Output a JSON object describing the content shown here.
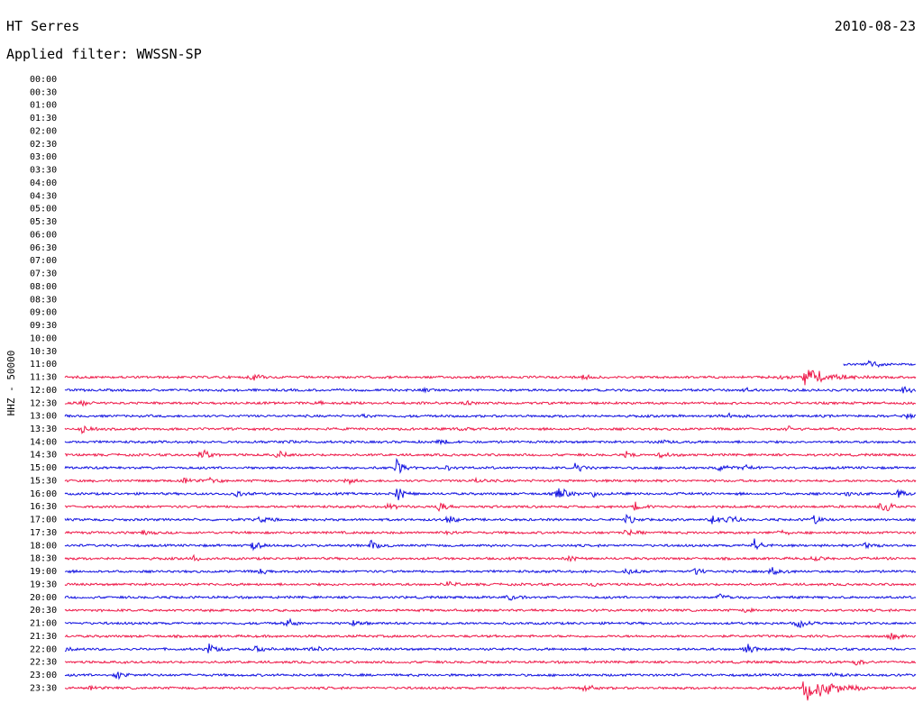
{
  "header": {
    "station": "HT Serres",
    "date": "2010-08-23",
    "filter": "Applied filter: WWSSN-SP"
  },
  "chart_data": {
    "type": "line",
    "title": "HT Serres",
    "date": "2010-08-23",
    "ylabel": "HHZ - 50000",
    "row_labels": [
      "00:00",
      "00:30",
      "01:00",
      "01:30",
      "02:00",
      "02:30",
      "03:00",
      "03:30",
      "04:00",
      "04:30",
      "05:00",
      "05:30",
      "06:00",
      "06:30",
      "07:00",
      "07:30",
      "08:00",
      "08:30",
      "09:00",
      "09:30",
      "10:00",
      "10:30",
      "11:00",
      "11:30",
      "12:00",
      "12:30",
      "13:00",
      "13:30",
      "14:00",
      "14:30",
      "15:00",
      "15:30",
      "16:00",
      "16:30",
      "17:00",
      "17:30",
      "18:00",
      "18:30",
      "19:00",
      "19:30",
      "20:00",
      "20:30",
      "21:00",
      "21:30",
      "22:00",
      "22:30",
      "23:00",
      "23:30"
    ],
    "x_range_minutes": [
      0,
      30
    ],
    "colors": {
      "odd": "#1010e0",
      "even": "#ee1848"
    },
    "traces": [
      {
        "row": "11:00",
        "start": 0.915,
        "end": 1.0,
        "bursts": [
          [
            0.945,
            8
          ]
        ]
      },
      {
        "row": "11:30",
        "start": 0.0,
        "end": 1.0,
        "bursts": [
          [
            0.22,
            5
          ],
          [
            0.61,
            3
          ],
          [
            0.84,
            4
          ],
          [
            0.87,
            11
          ]
        ]
      },
      {
        "row": "12:00",
        "start": 0.0,
        "end": 1.0,
        "bursts": [
          [
            0.42,
            2
          ],
          [
            0.8,
            3
          ],
          [
            0.985,
            5
          ]
        ]
      },
      {
        "row": "12:30",
        "start": 0.0,
        "end": 1.0,
        "bursts": [
          [
            0.02,
            3
          ],
          [
            0.3,
            2
          ],
          [
            0.47,
            2
          ]
        ]
      },
      {
        "row": "13:00",
        "start": 0.0,
        "end": 1.0,
        "bursts": [
          [
            0.35,
            2
          ],
          [
            0.78,
            3
          ],
          [
            0.99,
            4
          ]
        ]
      },
      {
        "row": "13:30",
        "start": 0.0,
        "end": 1.0,
        "bursts": [
          [
            0.02,
            6
          ],
          [
            0.46,
            3
          ],
          [
            0.85,
            3
          ],
          [
            0.9,
            2
          ]
        ]
      },
      {
        "row": "14:00",
        "start": 0.0,
        "end": 1.0,
        "bursts": [
          [
            0.26,
            2
          ],
          [
            0.44,
            3
          ],
          [
            0.7,
            2
          ]
        ]
      },
      {
        "row": "14:30",
        "start": 0.0,
        "end": 1.0,
        "bursts": [
          [
            0.16,
            8
          ],
          [
            0.25,
            6
          ],
          [
            0.66,
            4
          ],
          [
            0.7,
            3
          ]
        ]
      },
      {
        "row": "15:00",
        "start": 0.0,
        "end": 1.0,
        "bursts": [
          [
            0.39,
            9
          ],
          [
            0.45,
            3
          ],
          [
            0.6,
            6
          ],
          [
            0.77,
            5
          ],
          [
            0.8,
            4
          ]
        ]
      },
      {
        "row": "15:30",
        "start": 0.0,
        "end": 1.0,
        "bursts": [
          [
            0.14,
            3
          ],
          [
            0.17,
            3
          ],
          [
            0.33,
            4
          ],
          [
            0.48,
            3
          ]
        ]
      },
      {
        "row": "16:00",
        "start": 0.0,
        "end": 1.0,
        "bursts": [
          [
            0.2,
            4
          ],
          [
            0.39,
            10
          ],
          [
            0.58,
            10
          ],
          [
            0.62,
            4
          ],
          [
            0.92,
            4
          ],
          [
            0.98,
            5
          ]
        ]
      },
      {
        "row": "16:30",
        "start": 0.0,
        "end": 1.0,
        "bursts": [
          [
            0.38,
            4
          ],
          [
            0.44,
            6
          ],
          [
            0.67,
            5
          ],
          [
            0.96,
            10
          ]
        ]
      },
      {
        "row": "17:00",
        "start": 0.0,
        "end": 1.0,
        "bursts": [
          [
            0.23,
            5
          ],
          [
            0.45,
            5
          ],
          [
            0.66,
            5
          ],
          [
            0.76,
            7
          ],
          [
            0.78,
            6
          ],
          [
            0.88,
            6
          ]
        ]
      },
      {
        "row": "17:30",
        "start": 0.0,
        "end": 1.0,
        "bursts": [
          [
            0.09,
            3
          ],
          [
            0.45,
            3
          ],
          [
            0.66,
            4
          ],
          [
            0.84,
            3
          ]
        ]
      },
      {
        "row": "18:00",
        "start": 0.0,
        "end": 1.0,
        "bursts": [
          [
            0.22,
            6
          ],
          [
            0.36,
            6
          ],
          [
            0.81,
            8
          ],
          [
            0.94,
            4
          ]
        ]
      },
      {
        "row": "18:30",
        "start": 0.0,
        "end": 1.0,
        "bursts": [
          [
            0.15,
            4
          ],
          [
            0.59,
            4
          ],
          [
            0.88,
            3
          ]
        ]
      },
      {
        "row": "19:00",
        "start": 0.0,
        "end": 1.0,
        "bursts": [
          [
            0.23,
            4
          ],
          [
            0.66,
            4
          ],
          [
            0.74,
            5
          ],
          [
            0.83,
            6
          ]
        ]
      },
      {
        "row": "19:30",
        "start": 0.0,
        "end": 1.0,
        "bursts": [
          [
            0.45,
            4
          ],
          [
            0.62,
            2
          ]
        ]
      },
      {
        "row": "20:00",
        "start": 0.0,
        "end": 1.0,
        "bursts": [
          [
            0.52,
            5
          ],
          [
            0.77,
            8
          ]
        ]
      },
      {
        "row": "20:30",
        "start": 0.0,
        "end": 1.0,
        "bursts": [
          [
            0.8,
            2
          ]
        ]
      },
      {
        "row": "21:00",
        "start": 0.0,
        "end": 1.0,
        "bursts": [
          [
            0.26,
            6
          ],
          [
            0.34,
            5
          ],
          [
            0.86,
            6
          ]
        ]
      },
      {
        "row": "21:30",
        "start": 0.0,
        "end": 1.0,
        "bursts": [
          [
            0.97,
            5
          ]
        ]
      },
      {
        "row": "22:00",
        "start": 0.0,
        "end": 1.0,
        "bursts": [
          [
            0.0,
            5
          ],
          [
            0.17,
            6
          ],
          [
            0.22,
            7
          ],
          [
            0.29,
            6
          ],
          [
            0.8,
            7
          ]
        ]
      },
      {
        "row": "22:30",
        "start": 0.0,
        "end": 1.0,
        "bursts": [
          [
            0.93,
            4
          ]
        ]
      },
      {
        "row": "23:00",
        "start": 0.0,
        "end": 1.0,
        "bursts": [
          [
            0.06,
            6
          ],
          [
            0.9,
            3
          ]
        ]
      },
      {
        "row": "23:30",
        "start": 0.0,
        "end": 1.0,
        "bursts": [
          [
            0.03,
            2
          ],
          [
            0.61,
            5
          ],
          [
            0.87,
            20
          ]
        ]
      }
    ]
  }
}
